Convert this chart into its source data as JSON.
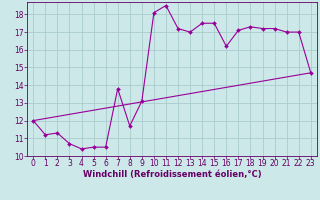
{
  "title": "",
  "xlabel": "Windchill (Refroidissement éolien,°C)",
  "bg_color": "#cce8e8",
  "line_color": "#990099",
  "grid_color": "#aacccc",
  "x_data": [
    0,
    1,
    2,
    3,
    4,
    5,
    6,
    7,
    8,
    9,
    10,
    11,
    12,
    13,
    14,
    15,
    16,
    17,
    18,
    19,
    20,
    21,
    22,
    23
  ],
  "y_data": [
    12.0,
    11.2,
    11.3,
    10.7,
    10.4,
    10.5,
    10.5,
    13.8,
    11.7,
    13.1,
    18.1,
    18.5,
    17.2,
    17.0,
    17.5,
    17.5,
    16.2,
    17.1,
    17.3,
    17.2,
    17.2,
    17.0,
    17.0,
    14.7
  ],
  "line2_x": [
    0,
    23
  ],
  "line2_y": [
    12.0,
    14.7
  ],
  "xlim": [
    -0.5,
    23.5
  ],
  "ylim": [
    10.0,
    18.7
  ],
  "yticks": [
    10,
    11,
    12,
    13,
    14,
    15,
    16,
    17,
    18
  ],
  "xticks": [
    0,
    1,
    2,
    3,
    4,
    5,
    6,
    7,
    8,
    9,
    10,
    11,
    12,
    13,
    14,
    15,
    16,
    17,
    18,
    19,
    20,
    21,
    22,
    23
  ],
  "tick_color": "#660066",
  "label_color": "#660066",
  "font_size": 5.5,
  "xlabel_fontsize": 6.0
}
